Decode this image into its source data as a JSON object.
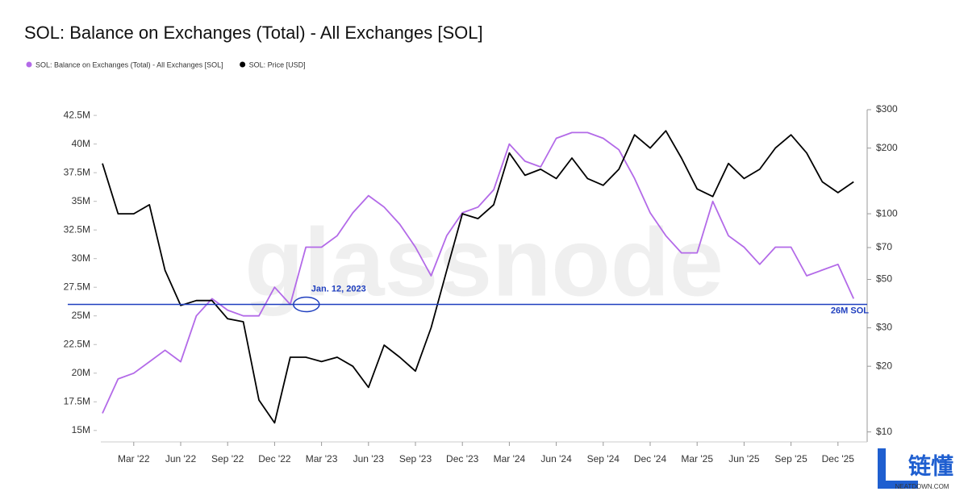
{
  "chart_data": {
    "type": "line",
    "title": "SOL: Balance on Exchanges (Total) - All Exchanges [SOL]",
    "watermark": "glassnode",
    "x": [
      "2022-01",
      "2022-02",
      "2022-03",
      "2022-04",
      "2022-05",
      "2022-06",
      "2022-07",
      "2022-08",
      "2022-09",
      "2022-10",
      "2022-11",
      "2022-12",
      "2023-01",
      "2023-02",
      "2023-03",
      "2023-04",
      "2023-05",
      "2023-06",
      "2023-07",
      "2023-08",
      "2023-09",
      "2023-10",
      "2023-11",
      "2023-12",
      "2024-01",
      "2024-02",
      "2024-03",
      "2024-04",
      "2024-05",
      "2024-06",
      "2024-07",
      "2024-08",
      "2024-09",
      "2024-10",
      "2024-11",
      "2024-12",
      "2025-01",
      "2025-02",
      "2025-03",
      "2025-04",
      "2025-05",
      "2025-06",
      "2025-07",
      "2025-08",
      "2025-09",
      "2025-10",
      "2025-11",
      "2025-12",
      "2026-01"
    ],
    "xticks": [
      {
        "value": "2022-03",
        "label": "Mar '22"
      },
      {
        "value": "2022-06",
        "label": "Jun '22"
      },
      {
        "value": "2022-09",
        "label": "Sep '22"
      },
      {
        "value": "2022-12",
        "label": "Dec '22"
      },
      {
        "value": "2023-03",
        "label": "Mar '23"
      },
      {
        "value": "2023-06",
        "label": "Jun '23"
      },
      {
        "value": "2023-09",
        "label": "Sep '23"
      },
      {
        "value": "2023-12",
        "label": "Dec '23"
      },
      {
        "value": "2024-03",
        "label": "Mar '24"
      },
      {
        "value": "2024-06",
        "label": "Jun '24"
      },
      {
        "value": "2024-09",
        "label": "Sep '24"
      },
      {
        "value": "2024-12",
        "label": "Dec '24"
      },
      {
        "value": "2025-03",
        "label": "Mar '25"
      },
      {
        "value": "2025-06",
        "label": "Jun '25"
      },
      {
        "value": "2025-09",
        "label": "Sep '25"
      },
      {
        "value": "2025-12",
        "label": "Dec '25"
      }
    ],
    "series": [
      {
        "name": "SOL: Balance on Exchanges (Total) - All Exchanges [SOL]",
        "color": "#b36ae8",
        "axis": "y",
        "values": [
          16500000,
          19500000,
          20000000,
          21000000,
          22000000,
          21000000,
          25000000,
          26500000,
          25500000,
          25000000,
          25000000,
          27500000,
          26000000,
          31000000,
          31000000,
          32000000,
          34000000,
          35500000,
          34500000,
          33000000,
          31000000,
          28500000,
          32000000,
          34000000,
          34500000,
          36000000,
          40000000,
          38500000,
          38000000,
          40500000,
          41000000,
          41000000,
          40500000,
          39500000,
          37000000,
          34000000,
          32000000,
          30500000,
          30500000,
          35000000,
          32000000,
          31000000,
          29500000,
          31000000,
          31000000,
          28500000,
          29000000,
          29500000,
          26500000
        ]
      },
      {
        "name": "SOL: Price [USD]",
        "color": "#000000",
        "axis": "y2",
        "values": [
          170,
          100,
          100,
          110,
          55,
          38,
          40,
          40,
          33,
          32,
          14,
          11,
          22,
          22,
          21,
          22,
          20,
          16,
          25,
          22,
          19,
          30,
          55,
          100,
          95,
          110,
          190,
          150,
          160,
          145,
          180,
          145,
          135,
          160,
          230,
          200,
          240,
          180,
          130,
          120,
          170,
          145,
          160,
          200,
          230,
          190,
          140,
          125,
          140
        ]
      }
    ],
    "ylim": [
      14000000,
      43000000
    ],
    "yticks": [
      {
        "value": 15000000,
        "label": "15M"
      },
      {
        "value": 17500000,
        "label": "17.5M"
      },
      {
        "value": 20000000,
        "label": "20M"
      },
      {
        "value": 22500000,
        "label": "22.5M"
      },
      {
        "value": 25000000,
        "label": "25M"
      },
      {
        "value": 27500000,
        "label": "27.5M"
      },
      {
        "value": 30000000,
        "label": "30M"
      },
      {
        "value": 32500000,
        "label": "32.5M"
      },
      {
        "value": 35000000,
        "label": "35M"
      },
      {
        "value": 37500000,
        "label": "37.5M"
      },
      {
        "value": 40000000,
        "label": "40M"
      },
      {
        "value": 42500000,
        "label": "42.5M"
      }
    ],
    "y2lim": [
      9,
      300
    ],
    "y2scale": "log",
    "y2ticks": [
      {
        "value": 10,
        "label": "$10"
      },
      {
        "value": 20,
        "label": "$20"
      },
      {
        "value": 30,
        "label": "$30"
      },
      {
        "value": 50,
        "label": "$50"
      },
      {
        "value": 70,
        "label": "$70"
      },
      {
        "value": 100,
        "label": "$100"
      },
      {
        "value": 200,
        "label": "$200"
      },
      {
        "value": 300,
        "label": "$300"
      }
    ],
    "legend": "top-left",
    "annotations": [
      {
        "x": "2023-01",
        "text": "Jan. 12, 2023"
      }
    ],
    "reference_line": {
      "value": 26000000,
      "label": "26M SOL",
      "color": "#1f3fbf"
    }
  },
  "logo": {
    "title": "链懂",
    "subtitle": "NEATDOWN.COM"
  }
}
